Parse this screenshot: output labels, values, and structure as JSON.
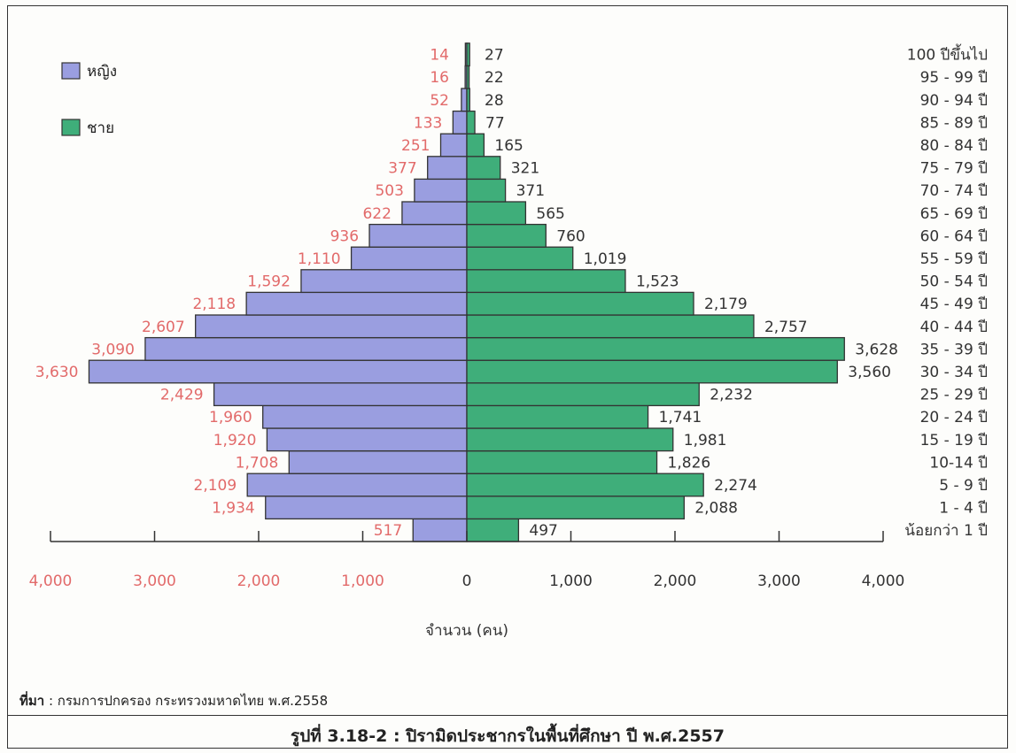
{
  "chart_data": {
    "type": "bar",
    "orientation": "horizontal-pyramid",
    "categories": [
      "น้อยกว่า 1 ปี",
      "1 - 4 ปี",
      "5 - 9 ปี",
      "10-14 ปี",
      "15 - 19 ปี",
      "20 - 24 ปี",
      "25 - 29 ปี",
      "30 - 34 ปี",
      "35 - 39 ปี",
      "40 - 44 ปี",
      "45 - 49 ปี",
      "50 - 54 ปี",
      "55 - 59 ปี",
      "60 - 64 ปี",
      "65 - 69 ปี",
      "70 - 74 ปี",
      "75 - 79 ปี",
      "80 - 84 ปี",
      "85 - 89 ปี",
      "90 - 94 ปี",
      "95 - 99 ปี",
      "100 ปีขึ้นไป"
    ],
    "series": [
      {
        "name": "หญิง",
        "color": "#9a9ee0",
        "values": [
          517,
          1934,
          2109,
          1708,
          1920,
          1960,
          2429,
          3630,
          3090,
          2607,
          2118,
          1592,
          1110,
          936,
          622,
          503,
          377,
          251,
          133,
          52,
          16,
          14
        ],
        "labels": [
          "517",
          "1,934",
          "2,109",
          "1,708",
          "1,920",
          "1,960",
          "2,429",
          "3,630",
          "3,090",
          "2,607",
          "2,118",
          "1,592",
          "1,110",
          "936",
          "622",
          "503",
          "377",
          "251",
          "133",
          "52",
          "16",
          "14"
        ]
      },
      {
        "name": "ชาย",
        "color": "#3fae7a",
        "values": [
          497,
          2088,
          2274,
          1826,
          1981,
          1741,
          2232,
          3560,
          3628,
          2757,
          2179,
          1523,
          1019,
          760,
          565,
          371,
          321,
          165,
          77,
          28,
          22,
          27
        ],
        "labels": [
          "497",
          "2,088",
          "2,274",
          "1,826",
          "1,981",
          "1,741",
          "2,232",
          "3,560",
          "3,628",
          "2,757",
          "2,179",
          "1,523",
          "1,019",
          "760",
          "565",
          "371",
          "321",
          "165",
          "77",
          "28",
          "22",
          "27"
        ]
      }
    ],
    "xlim": [
      -4000,
      4000
    ],
    "xticks_left": [
      "4,000",
      "3,000",
      "2,000",
      "1,000"
    ],
    "xtick_zero": "0",
    "xticks_right": [
      "1,000",
      "2,000",
      "3,000",
      "4,000"
    ],
    "xlabel": "จำนวน (คน)",
    "legend_position": "top-left",
    "grid": false
  },
  "source": {
    "label": "ที่มา",
    "text": " : กรมการปกครอง กระทรวงมหาดไทย พ.ศ.2558"
  },
  "caption": "รูปที่ 3.18-2 : ปิรามิดประชากรในพื้นที่ศึกษา ปี พ.ศ.2557"
}
